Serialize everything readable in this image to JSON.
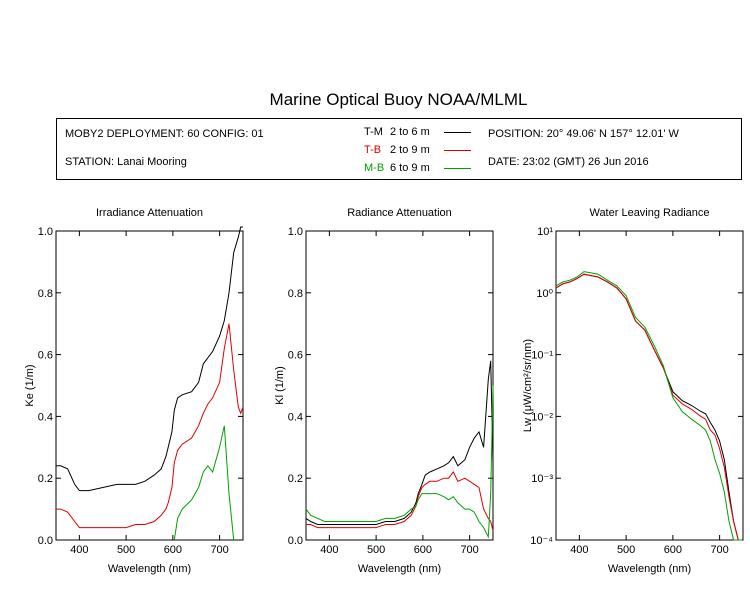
{
  "header": {
    "title": "Marine Optical Buoy NOAA/MLML",
    "deployment": "MOBY2 DEPLOYMENT: 60 CONFIG: 01",
    "station": "STATION: Lanai Mooring",
    "position": "POSITION: 20° 49.06' N   157° 12.01' W",
    "date": "DATE: 23:02 (GMT) 26 Jun 2016"
  },
  "legend": [
    {
      "code": "T-M",
      "range": "2 to 6  m",
      "color": "#000000"
    },
    {
      "code": "T-B",
      "range": "2 to 9  m",
      "color": "#e00000"
    },
    {
      "code": "M-B",
      "range": "6 to 9  m",
      "color": "#00a000"
    }
  ],
  "chart_data": [
    {
      "type": "line",
      "title": "Irradiance Attenuation",
      "xlabel": "Wavelength (nm)",
      "ylabel": "Ke  (1/m)",
      "xlim": [
        350,
        750
      ],
      "ylim": [
        0,
        1.0
      ],
      "xticks": [
        "400",
        "500",
        "600",
        "700"
      ],
      "yticks": [
        "0.0",
        "0.2",
        "0.4",
        "0.6",
        "0.8",
        "1.0"
      ],
      "x": [
        350,
        360,
        375,
        390,
        400,
        420,
        450,
        480,
        500,
        520,
        540,
        560,
        575,
        585,
        590,
        598,
        603,
        610,
        620,
        640,
        655,
        665,
        675,
        685,
        700,
        710,
        720,
        730,
        740,
        745,
        750
      ],
      "series": [
        {
          "name": "T-M",
          "color": "#000000",
          "values": [
            0.24,
            0.24,
            0.23,
            0.18,
            0.16,
            0.16,
            0.17,
            0.18,
            0.18,
            0.18,
            0.19,
            0.21,
            0.23,
            0.27,
            0.3,
            0.35,
            0.42,
            0.46,
            0.47,
            0.48,
            0.51,
            0.57,
            0.59,
            0.61,
            0.66,
            0.71,
            0.8,
            0.93,
            0.98,
            1.02,
            1.05
          ]
        },
        {
          "name": "T-B",
          "color": "#e00000",
          "values": [
            0.1,
            0.1,
            0.09,
            0.06,
            0.04,
            0.04,
            0.04,
            0.04,
            0.04,
            0.05,
            0.05,
            0.06,
            0.08,
            0.1,
            0.12,
            0.17,
            0.25,
            0.29,
            0.31,
            0.33,
            0.37,
            0.41,
            0.44,
            0.46,
            0.51,
            0.62,
            0.7,
            0.55,
            0.43,
            0.41,
            0.43
          ]
        },
        {
          "name": "M-B",
          "color": "#00a000",
          "values": [
            null,
            null,
            null,
            null,
            null,
            null,
            null,
            null,
            null,
            null,
            null,
            null,
            null,
            null,
            null,
            null,
            0.0,
            0.07,
            0.1,
            0.13,
            0.17,
            0.22,
            0.24,
            0.22,
            0.3,
            0.37,
            0.15,
            0.0,
            null,
            null,
            null
          ]
        }
      ]
    },
    {
      "type": "line",
      "title": "Radiance Attenuation",
      "xlabel": "Wavelength (nm)",
      "ylabel": "Kl  (1/m)",
      "xlim": [
        350,
        750
      ],
      "ylim": [
        0,
        1.0
      ],
      "xticks": [
        "400",
        "500",
        "600",
        "700"
      ],
      "yticks": [
        "0.0",
        "0.2",
        "0.4",
        "0.6",
        "0.8",
        "1.0"
      ],
      "x": [
        350,
        360,
        375,
        390,
        400,
        420,
        450,
        480,
        500,
        520,
        540,
        560,
        575,
        585,
        590,
        598,
        605,
        615,
        630,
        645,
        655,
        665,
        675,
        690,
        700,
        710,
        720,
        730,
        740,
        745,
        750
      ],
      "series": [
        {
          "name": "T-M",
          "color": "#000000",
          "values": [
            0.07,
            0.06,
            0.05,
            0.05,
            0.05,
            0.05,
            0.05,
            0.05,
            0.05,
            0.06,
            0.06,
            0.07,
            0.09,
            0.12,
            0.15,
            0.18,
            0.21,
            0.22,
            0.23,
            0.24,
            0.25,
            0.27,
            0.24,
            0.26,
            0.3,
            0.33,
            0.35,
            0.3,
            0.52,
            0.58,
            0.25
          ]
        },
        {
          "name": "T-B",
          "color": "#e00000",
          "values": [
            0.05,
            0.05,
            0.04,
            0.04,
            0.04,
            0.04,
            0.04,
            0.04,
            0.04,
            0.05,
            0.05,
            0.06,
            0.08,
            0.11,
            0.14,
            0.17,
            0.18,
            0.19,
            0.19,
            0.2,
            0.2,
            0.22,
            0.19,
            0.2,
            0.19,
            0.18,
            0.17,
            0.1,
            0.07,
            0.06,
            0.03
          ]
        },
        {
          "name": "M-B",
          "color": "#00a000",
          "values": [
            0.1,
            0.08,
            0.07,
            0.06,
            0.06,
            0.06,
            0.06,
            0.06,
            0.06,
            0.07,
            0.07,
            0.08,
            0.1,
            0.11,
            0.13,
            0.15,
            0.15,
            0.15,
            0.15,
            0.14,
            0.13,
            0.14,
            0.12,
            0.1,
            0.1,
            0.09,
            0.06,
            0.04,
            0.01,
            0.15,
            0.5
          ]
        }
      ]
    },
    {
      "type": "line",
      "title": "Water Leaving Radiance",
      "xlabel": "Wavelength (nm)",
      "ylabel": "Lw  (μW/cm²/sr/nm)",
      "yscale": "log",
      "xlim": [
        350,
        750
      ],
      "ylim": [
        0.0001,
        10
      ],
      "xticks": [
        "400",
        "500",
        "600",
        "700"
      ],
      "yticks": [
        "10⁻⁴",
        "10⁻³",
        "10⁻²",
        "10⁻¹",
        "10⁰",
        "10¹"
      ],
      "x": [
        350,
        365,
        380,
        395,
        410,
        425,
        440,
        460,
        480,
        500,
        520,
        540,
        560,
        580,
        600,
        620,
        640,
        660,
        670,
        680,
        690,
        700,
        710,
        720,
        730,
        740,
        748
      ],
      "series": [
        {
          "name": "T-M",
          "color": "#000000",
          "values": [
            1.2,
            1.4,
            1.5,
            1.7,
            2.0,
            1.9,
            1.8,
            1.5,
            1.2,
            0.8,
            0.35,
            0.25,
            0.12,
            0.06,
            0.025,
            0.018,
            0.015,
            0.012,
            0.011,
            0.008,
            0.006,
            0.004,
            0.002,
            0.0006,
            0.0002,
            0.0001,
            0.0001
          ]
        },
        {
          "name": "T-B",
          "color": "#e00000",
          "values": [
            1.2,
            1.4,
            1.5,
            1.7,
            2.0,
            1.9,
            1.8,
            1.5,
            1.2,
            0.8,
            0.35,
            0.25,
            0.12,
            0.06,
            0.022,
            0.016,
            0.013,
            0.01,
            0.009,
            0.006,
            0.005,
            0.003,
            0.0015,
            0.0005,
            0.0002,
            0.0001,
            0.0001
          ]
        },
        {
          "name": "M-B",
          "color": "#00a000",
          "values": [
            1.3,
            1.5,
            1.6,
            1.8,
            2.2,
            2.1,
            2.0,
            1.6,
            1.3,
            0.9,
            0.4,
            0.28,
            0.14,
            0.065,
            0.02,
            0.012,
            0.009,
            0.007,
            0.006,
            0.004,
            0.002,
            0.0012,
            0.0006,
            0.0002,
            0.0001,
            0.0001,
            0.0001
          ]
        }
      ]
    }
  ]
}
